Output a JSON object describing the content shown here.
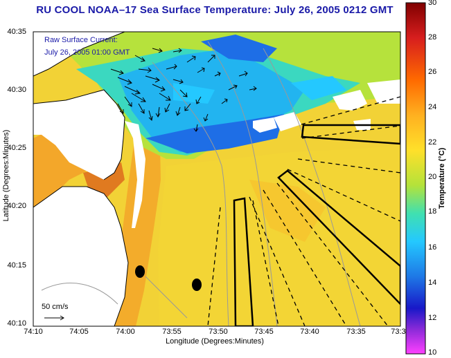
{
  "title": "RU COOL  NOAA–17  Sea Surface Temperature:  July 26, 2005 0212 GMT",
  "y_axis_label": "Latitude (Degrees:Minutes)",
  "x_axis_label": "Longitude (Degrees:Minutes)",
  "y_ticks": [
    "40:35",
    "40:30",
    "40:25",
    "40:20",
    "40:15",
    "40:10"
  ],
  "x_ticks": [
    "74:10",
    "74:05",
    "74:00",
    "73:55",
    "73:50",
    "73:45",
    "73:40",
    "73:35",
    "73:3"
  ],
  "overlay": {
    "line1": "Raw Surface Current:",
    "line2": "July 26, 2005 01:00 GMT"
  },
  "scale_label": "50 cm/s",
  "colorbar": {
    "label": "Temperature (°C)",
    "ticks": [
      "30",
      "28",
      "26",
      "24",
      "22",
      "20",
      "18",
      "16",
      "14",
      "12",
      "10"
    ],
    "range": [
      10,
      30
    ]
  },
  "colors": {
    "title": "#1a1aa8",
    "land": "#ffffff",
    "warm": "#f5a623",
    "mid": "#f0d23c",
    "cool": "#1e78e6"
  }
}
